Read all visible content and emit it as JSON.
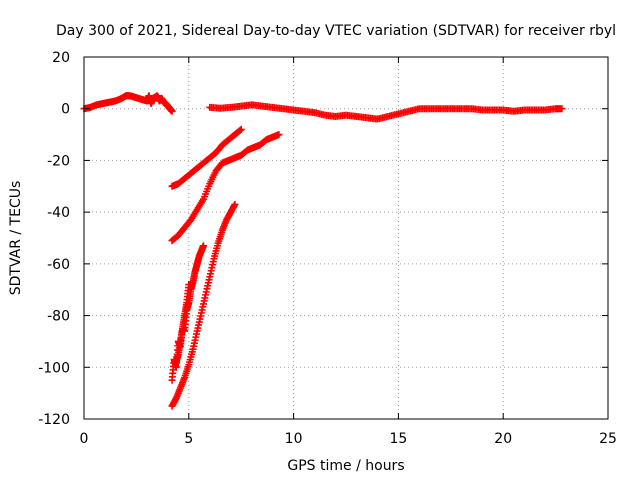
{
  "chart_data": {
    "type": "scatter",
    "title": "Day 300 of 2021, Sidereal Day-to-day VTEC variation (SDTVAR) for receiver rbyl",
    "xlabel": "GPS time / hours",
    "ylabel": "SDTVAR / TECUs",
    "xlim": [
      0,
      25
    ],
    "ylim": [
      -120,
      20
    ],
    "xticks": [
      0,
      5,
      10,
      15,
      20,
      25
    ],
    "yticks": [
      -120,
      -100,
      -80,
      -60,
      -40,
      -20,
      0,
      20
    ],
    "grid": true,
    "legend": "none",
    "marker": "plus",
    "color": "#ff0000",
    "series": [
      {
        "x": [
          0.0,
          0.3,
          0.6,
          0.9,
          1.2,
          1.5,
          1.8,
          2.0,
          2.2,
          2.4,
          2.6,
          2.8,
          3.0,
          3.1,
          3.2,
          3.3,
          3.4,
          3.5,
          3.6,
          3.7,
          3.8,
          3.9,
          4.0,
          4.1,
          4.2
        ],
        "y": [
          0.0,
          0.5,
          1.5,
          2.0,
          2.5,
          3.0,
          4.0,
          5.0,
          5.0,
          4.5,
          4.0,
          3.5,
          3.0,
          5.0,
          2.0,
          4.0,
          4.5,
          5.0,
          3.0,
          4.0,
          2.5,
          2.0,
          1.0,
          0.0,
          -1.0
        ]
      },
      {
        "x": [
          6.0,
          6.5,
          7.0,
          7.5,
          8.0,
          8.5,
          9.0,
          9.5,
          10.0,
          10.5,
          11.0,
          11.5,
          12.0,
          12.5,
          13.0,
          13.5,
          14.0,
          14.5,
          15.0,
          15.5,
          16.0,
          16.5,
          17.0,
          17.5,
          18.0,
          18.5,
          19.0,
          19.5,
          20.0,
          20.5,
          21.0,
          21.5,
          22.0,
          22.5,
          22.8
        ],
        "y": [
          0.5,
          0.2,
          0.5,
          1.0,
          1.5,
          1.0,
          0.5,
          0.0,
          -0.5,
          -1.0,
          -1.5,
          -2.5,
          -3.0,
          -2.5,
          -3.0,
          -3.5,
          -4.0,
          -3.0,
          -2.0,
          -1.0,
          0.0,
          0.0,
          0.0,
          0.0,
          0.0,
          0.0,
          -0.5,
          -0.5,
          -0.5,
          -1.0,
          -0.5,
          -0.5,
          -0.5,
          0.0,
          0.0
        ]
      },
      {
        "x": [
          4.2,
          4.5,
          4.8,
          5.1,
          5.4,
          5.7,
          6.0,
          6.3,
          6.6,
          6.9,
          7.2,
          7.5
        ],
        "y": [
          -30.0,
          -29.0,
          -27.0,
          -25.0,
          -23.0,
          -21.0,
          -19.0,
          -17.0,
          -14.0,
          -12.0,
          -10.0,
          -8.0
        ]
      },
      {
        "x": [
          4.2,
          4.5,
          4.8,
          5.1,
          5.4,
          5.7,
          6.0,
          6.3,
          6.6,
          6.9,
          7.2,
          7.5,
          7.8,
          8.1,
          8.4,
          8.7,
          9.0,
          9.3
        ],
        "y": [
          -51.0,
          -49.0,
          -46.0,
          -43.0,
          -39.0,
          -35.0,
          -29.0,
          -24.0,
          -21.0,
          -20.0,
          -19.0,
          -18.0,
          -16.0,
          -15.0,
          -14.0,
          -12.0,
          -11.0,
          -10.0
        ]
      },
      {
        "x": [
          4.2,
          4.3,
          4.4,
          4.5,
          4.6,
          4.7,
          4.8,
          4.9,
          5.0,
          5.1,
          5.2,
          5.3,
          5.4,
          5.5,
          5.6,
          5.7
        ],
        "y": [
          -105.0,
          -97.0,
          -100.0,
          -90.0,
          -92.0,
          -85.0,
          -86.0,
          -78.0,
          -75.0,
          -70.0,
          -67.0,
          -63.0,
          -60.0,
          -57.0,
          -55.0,
          -53.0
        ]
      },
      {
        "x": [
          4.2,
          4.4,
          4.6,
          4.8,
          5.0,
          5.2,
          5.4,
          5.6,
          5.8,
          6.0,
          6.2,
          6.4,
          6.6,
          6.8,
          7.0,
          7.2
        ],
        "y": [
          -115.0,
          -112.0,
          -108.0,
          -104.0,
          -99.0,
          -93.0,
          -86.0,
          -79.0,
          -72.0,
          -65.0,
          -58.0,
          -52.0,
          -47.0,
          -43.0,
          -40.0,
          -37.0
        ]
      },
      {
        "x": [
          4.4,
          4.5,
          4.6,
          4.7,
          4.8,
          4.9,
          5.0
        ],
        "y": [
          -98.0,
          -95.0,
          -90.0,
          -85.0,
          -80.0,
          -75.0,
          -68.0
        ]
      }
    ]
  }
}
